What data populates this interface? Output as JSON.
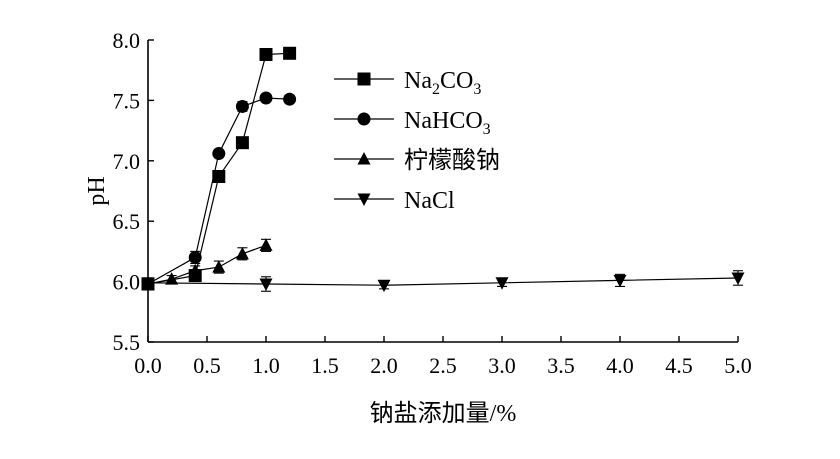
{
  "chart_data": {
    "type": "line",
    "title": "",
    "xlabel": "钠盐添加量/%",
    "ylabel": "pH",
    "xlim": [
      0.0,
      5.0
    ],
    "ylim": [
      5.5,
      8.0
    ],
    "xticks": [
      "0.0",
      "0.5",
      "1.0",
      "1.5",
      "2.0",
      "2.5",
      "3.0",
      "3.5",
      "4.0",
      "4.5",
      "5.0"
    ],
    "yticks": [
      "5.5",
      "6.0",
      "6.5",
      "7.0",
      "7.5",
      "8.0"
    ],
    "grid": false,
    "legend_position": "top-right",
    "series": [
      {
        "name": "Na2CO3",
        "marker": "square",
        "x": [
          0.0,
          0.4,
          0.6,
          0.8,
          1.0,
          1.2
        ],
        "y": [
          5.98,
          6.05,
          6.87,
          7.15,
          7.88,
          7.89
        ],
        "err": [
          0.03,
          0.03,
          0.04,
          0.04,
          0.04,
          0.04
        ]
      },
      {
        "name": "NaHCO3",
        "marker": "circle",
        "x": [
          0.0,
          0.4,
          0.6,
          0.8,
          1.0,
          1.2
        ],
        "y": [
          5.98,
          6.2,
          7.06,
          7.45,
          7.52,
          7.51
        ],
        "err": [
          0.03,
          0.05,
          0.03,
          0.04,
          0.02,
          0.02
        ]
      },
      {
        "name": "柠檬酸钠",
        "marker": "triangle-up",
        "x": [
          0.0,
          0.2,
          0.4,
          0.6,
          0.8,
          1.0
        ],
        "y": [
          5.98,
          6.02,
          6.09,
          6.12,
          6.23,
          6.3
        ],
        "err": [
          0.03,
          0.03,
          0.04,
          0.05,
          0.05,
          0.05
        ]
      },
      {
        "name": "NaCl",
        "marker": "triangle-down",
        "x": [
          0.0,
          1.0,
          2.0,
          3.0,
          4.0,
          5.0
        ],
        "y": [
          5.99,
          5.98,
          5.97,
          5.99,
          6.01,
          6.03
        ],
        "err": [
          0.03,
          0.06,
          0.03,
          0.03,
          0.05,
          0.06
        ]
      }
    ]
  },
  "legend": {
    "items": [
      {
        "base": "Na",
        "sub1": "2",
        "mid": "CO",
        "sub2": "3"
      },
      {
        "base": "NaHCO",
        "sub1": "",
        "mid": "",
        "sub2": "3"
      },
      {
        "base": "柠檬酸钠",
        "sub1": "",
        "mid": "",
        "sub2": ""
      },
      {
        "base": "NaCl",
        "sub1": "",
        "mid": "",
        "sub2": ""
      }
    ]
  }
}
